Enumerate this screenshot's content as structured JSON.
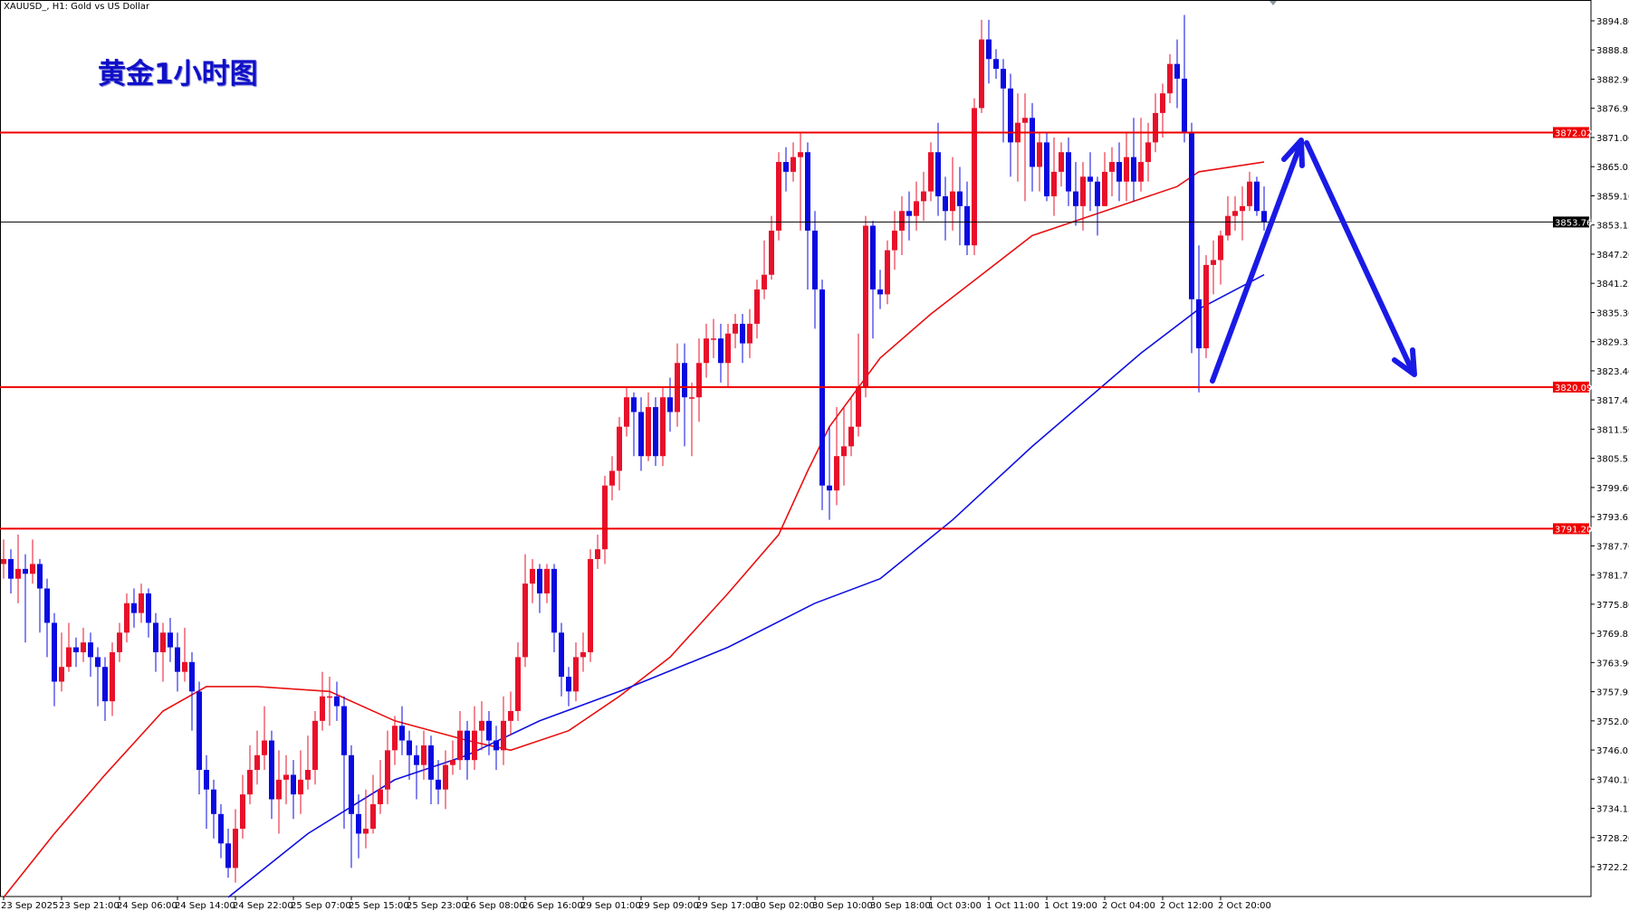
{
  "header": {
    "symbol_info": "XAUUSD_, H1:  Gold vs US Dollar",
    "annotation_title": "黄金1小时图"
  },
  "colors": {
    "bull_candle": "#e8102a",
    "bear_candle": "#0a0ae0",
    "fast_ma": "#e81010",
    "slow_ma": "#1010e0",
    "level_line": "#ee0000",
    "current_price_line": "#000000",
    "arrow": "#1a1ae6"
  },
  "chart_data": {
    "type": "candlestick",
    "symbol": "XAUUSD_",
    "timeframe": "H1",
    "ylim": [
      3719,
      3898
    ],
    "y_ticks": [
      "3894.80",
      "3888.85",
      "3882.90",
      "3876.95",
      "3871.00",
      "3865.05",
      "3859.10",
      "3853.15",
      "3847.20",
      "3841.25",
      "3835.30",
      "3829.35",
      "3823.40",
      "3817.45",
      "3811.50",
      "3805.55",
      "3799.60",
      "3793.65",
      "3787.70",
      "3781.75",
      "3775.80",
      "3769.85",
      "3763.90",
      "3757.95",
      "3752.00",
      "3746.05",
      "3740.10",
      "3734.15",
      "3728.20",
      "3722.25"
    ],
    "x_ticks": [
      {
        "bar": 0,
        "label": "23 Sep 2025"
      },
      {
        "bar": 8,
        "label": "23 Sep 21:00"
      },
      {
        "bar": 16,
        "label": "24 Sep 06:00"
      },
      {
        "bar": 24,
        "label": "24 Sep 14:00"
      },
      {
        "bar": 32,
        "label": "24 Sep 22:00"
      },
      {
        "bar": 40,
        "label": "25 Sep 07:00"
      },
      {
        "bar": 48,
        "label": "25 Sep 15:00"
      },
      {
        "bar": 56,
        "label": "25 Sep 23:00"
      },
      {
        "bar": 64,
        "label": "26 Sep 08:00"
      },
      {
        "bar": 72,
        "label": "26 Sep 16:00"
      },
      {
        "bar": 80,
        "label": "29 Sep 01:00"
      },
      {
        "bar": 88,
        "label": "29 Sep 09:00"
      },
      {
        "bar": 96,
        "label": "29 Sep 17:00"
      },
      {
        "bar": 104,
        "label": "30 Sep 02:00"
      },
      {
        "bar": 112,
        "label": "30 Sep 10:00"
      },
      {
        "bar": 120,
        "label": "30 Sep 18:00"
      },
      {
        "bar": 128,
        "label": "1 Oct 03:00"
      },
      {
        "bar": 136,
        "label": "1 Oct 11:00"
      },
      {
        "bar": 144,
        "label": "1 Oct 19:00"
      },
      {
        "bar": 152,
        "label": "2 Oct 04:00"
      },
      {
        "bar": 160,
        "label": "2 Oct 12:00"
      },
      {
        "bar": 168,
        "label": "2 Oct 20:00"
      }
    ],
    "first_open": 3784,
    "close": [
      3785,
      3781,
      3783,
      3782,
      3784,
      3779,
      3772,
      3760,
      3763,
      3767,
      3766,
      3768,
      3765,
      3763,
      3756,
      3766,
      3770,
      3776,
      3774,
      3778,
      3772,
      3766,
      3770,
      3767,
      3762,
      3764,
      3758,
      3742,
      3738,
      3733,
      3727,
      3722,
      3730,
      3737,
      3742,
      3745,
      3748,
      3736,
      3740,
      3741,
      3737,
      3740,
      3742,
      3752,
      3757,
      3757,
      3755,
      3745,
      3733,
      3729,
      3730,
      3735,
      3738,
      3746,
      3751,
      3748,
      3745,
      3743,
      3747,
      3740,
      3738,
      3743,
      3744,
      3750,
      3744,
      3750,
      3752,
      3748,
      3746,
      3752,
      3754,
      3765,
      3780,
      3783,
      3778,
      3783,
      3770,
      3761,
      3758,
      3765,
      3766,
      3785,
      3787,
      3800,
      3803,
      3812,
      3818,
      3815,
      3806,
      3816,
      3806,
      3818,
      3815,
      3825,
      3818,
      3818,
      3825,
      3830,
      3830,
      3825,
      3831,
      3833,
      3829,
      3833,
      3840,
      3843,
      3852,
      3866,
      3864,
      3867,
      3868,
      3852,
      3840,
      3800,
      3799,
      3806,
      3808,
      3812,
      3820,
      3853,
      3840,
      3839,
      3848,
      3852,
      3856,
      3855,
      3858,
      3860,
      3868,
      3859,
      3856,
      3860,
      3857,
      3849,
      3877,
      3891,
      3887,
      3885,
      3881,
      3870,
      3874,
      3875,
      3865,
      3870,
      3859,
      3864,
      3868,
      3860,
      3857,
      3863,
      3862,
      3857,
      3864,
      3866,
      3862,
      3867,
      3862,
      3866,
      3870,
      3876,
      3880,
      3886,
      3883,
      3872,
      3838,
      3828,
      3845,
      3846,
      3851,
      3855,
      3856,
      3857,
      3862,
      3856,
      3853.76
    ],
    "high": [
      3789,
      3787,
      3790,
      3786,
      3789,
      3785,
      3781,
      3774,
      3770,
      3772,
      3769,
      3771,
      3770,
      3767,
      3765,
      3768,
      3772,
      3778,
      3779,
      3780,
      3779,
      3774,
      3772,
      3773,
      3770,
      3771,
      3766,
      3760,
      3745,
      3740,
      3735,
      3730,
      3734,
      3741,
      3747,
      3750,
      3755,
      3750,
      3746,
      3745,
      3744,
      3746,
      3749,
      3754,
      3762,
      3761,
      3760,
      3757,
      3747,
      3737,
      3738,
      3741,
      3744,
      3750,
      3753,
      3755,
      3750,
      3747,
      3750,
      3749,
      3744,
      3746,
      3748,
      3754,
      3752,
      3755,
      3756,
      3754,
      3751,
      3757,
      3758,
      3768,
      3786,
      3785,
      3784,
      3784,
      3784,
      3772,
      3763,
      3768,
      3770,
      3787,
      3790,
      3802,
      3806,
      3814,
      3820,
      3819,
      3818,
      3819,
      3818,
      3820,
      3822,
      3829,
      3829,
      3821,
      3830,
      3833,
      3834,
      3833,
      3833,
      3835,
      3835,
      3836,
      3842,
      3850,
      3855,
      3868,
      3869,
      3870,
      3872,
      3870,
      3856,
      3842,
      3812,
      3816,
      3816,
      3818,
      3831,
      3855,
      3854,
      3844,
      3850,
      3856,
      3859,
      3860,
      3862,
      3864,
      3870,
      3874,
      3863,
      3867,
      3865,
      3862,
      3879,
      3895,
      3895,
      3889,
      3887,
      3884,
      3880,
      3880,
      3878,
      3872,
      3872,
      3871,
      3870,
      3871,
      3866,
      3866,
      3868,
      3863,
      3868,
      3869,
      3870,
      3872,
      3875,
      3875,
      3874,
      3880,
      3882,
      3888,
      3891,
      3896,
      3874,
      3849,
      3847,
      3850,
      3852,
      3859,
      3859,
      3861,
      3864,
      3863,
      3861
    ],
    "low": [
      3781,
      3778,
      3776,
      3768,
      3780,
      3770,
      3765,
      3755,
      3758,
      3762,
      3763,
      3764,
      3761,
      3755,
      3752,
      3753,
      3764,
      3768,
      3771,
      3772,
      3769,
      3762,
      3760,
      3764,
      3758,
      3760,
      3750,
      3737,
      3730,
      3728,
      3724,
      3720,
      3719,
      3728,
      3735,
      3739,
      3742,
      3732,
      3729,
      3735,
      3732,
      3733,
      3738,
      3739,
      3750,
      3751,
      3752,
      3730,
      3722,
      3724,
      3726,
      3729,
      3733,
      3735,
      3743,
      3745,
      3740,
      3736,
      3740,
      3735,
      3735,
      3734,
      3741,
      3742,
      3740,
      3742,
      3746,
      3745,
      3742,
      3743,
      3749,
      3752,
      3763,
      3776,
      3774,
      3776,
      3766,
      3757,
      3755,
      3756,
      3762,
      3764,
      3783,
      3784,
      3797,
      3799,
      3810,
      3806,
      3803,
      3805,
      3804,
      3804,
      3811,
      3812,
      3808,
      3806,
      3813,
      3822,
      3826,
      3821,
      3820,
      3828,
      3825,
      3826,
      3830,
      3838,
      3842,
      3850,
      3860,
      3862,
      3852,
      3840,
      3832,
      3795,
      3793,
      3796,
      3800,
      3806,
      3810,
      3818,
      3830,
      3836,
      3837,
      3844,
      3847,
      3850,
      3852,
      3854,
      3858,
      3855,
      3850,
      3852,
      3849,
      3847,
      3847,
      3876,
      3882,
      3883,
      3870,
      3863,
      3862,
      3858,
      3860,
      3860,
      3858,
      3855,
      3861,
      3857,
      3853,
      3852,
      3856,
      3851,
      3857,
      3859,
      3858,
      3858,
      3858,
      3860,
      3862,
      3868,
      3871,
      3878,
      3877,
      3870,
      3827,
      3819,
      3826,
      3839,
      3841,
      3850,
      3852,
      3850,
      3856,
      3855,
      3852
    ],
    "moving_averages": [
      {
        "role": "fast",
        "color": "#e81010",
        "points": [
          [
            0,
            3716
          ],
          [
            7,
            3729
          ],
          [
            14,
            3741
          ],
          [
            22,
            3754
          ],
          [
            28,
            3759
          ],
          [
            35,
            3759
          ],
          [
            45,
            3758
          ],
          [
            54,
            3752
          ],
          [
            64,
            3748
          ],
          [
            70,
            3746
          ],
          [
            78,
            3750
          ],
          [
            85,
            3757
          ],
          [
            92,
            3765
          ],
          [
            100,
            3778
          ],
          [
            107,
            3790
          ],
          [
            111,
            3803
          ],
          [
            114,
            3812
          ],
          [
            121,
            3826
          ],
          [
            128,
            3835
          ],
          [
            135,
            3843
          ],
          [
            142,
            3851
          ],
          [
            150,
            3855
          ],
          [
            158,
            3859
          ],
          [
            162,
            3861
          ],
          [
            165,
            3864
          ],
          [
            174,
            3866
          ]
        ]
      },
      {
        "role": "slow",
        "color": "#1010e0",
        "points": [
          [
            31,
            3716
          ],
          [
            42,
            3729
          ],
          [
            54,
            3740
          ],
          [
            64,
            3745
          ],
          [
            74,
            3752
          ],
          [
            85,
            3758
          ],
          [
            100,
            3767
          ],
          [
            112,
            3776
          ],
          [
            121,
            3781
          ],
          [
            131,
            3793
          ],
          [
            142,
            3808
          ],
          [
            157,
            3827
          ],
          [
            165,
            3836
          ],
          [
            174,
            3843
          ]
        ]
      }
    ],
    "horizontal_levels": [
      {
        "price": "3872.02",
        "color": "#ee0000"
      },
      {
        "price": "3820.09",
        "color": "#ee0000"
      },
      {
        "price": "3791.20",
        "color": "#ee0000"
      }
    ],
    "current_price": "3853.76"
  }
}
